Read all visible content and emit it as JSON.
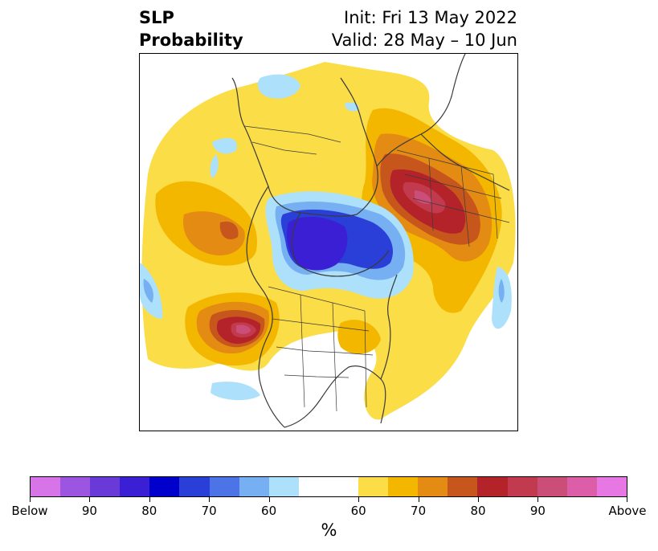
{
  "title": {
    "left_line1": "SLP",
    "left_line2": "Probability",
    "right_line1": "Init: Fri 13 May 2022",
    "right_line2": "Valid: 28 May – 10 Jun"
  },
  "colorbar": {
    "colors": [
      "#d774e8",
      "#9b55e0",
      "#6a3ad8",
      "#3a1fd4",
      "#0000cc",
      "#2a3fd8",
      "#4d74e6",
      "#76b0f3",
      "#ade0fb",
      "#ffffff",
      "#ffffff",
      "#fbdd47",
      "#f3b700",
      "#e38b12",
      "#c7561c",
      "#b4222a",
      "#c13a4e",
      "#cb4e78",
      "#dc5ea9",
      "#e778e3"
    ],
    "tick_labels": [
      "Below",
      "90",
      "80",
      "70",
      "60",
      "60",
      "70",
      "80",
      "90",
      "Above"
    ],
    "unit": "%"
  },
  "map": {
    "colors": {
      "below_60": "#ade0fb",
      "below_70": "#76b0f3",
      "below_80": "#2a3fd8",
      "below_90": "#3a1fd4",
      "above_60": "#fbdd47",
      "above_70": "#f3b700",
      "above_75": "#e38b12",
      "above_80": "#c7561c",
      "above_85": "#b4222a",
      "above_90": "#c13a4e",
      "above_95": "#cb4e78",
      "coast": "#3a3a3a"
    }
  }
}
